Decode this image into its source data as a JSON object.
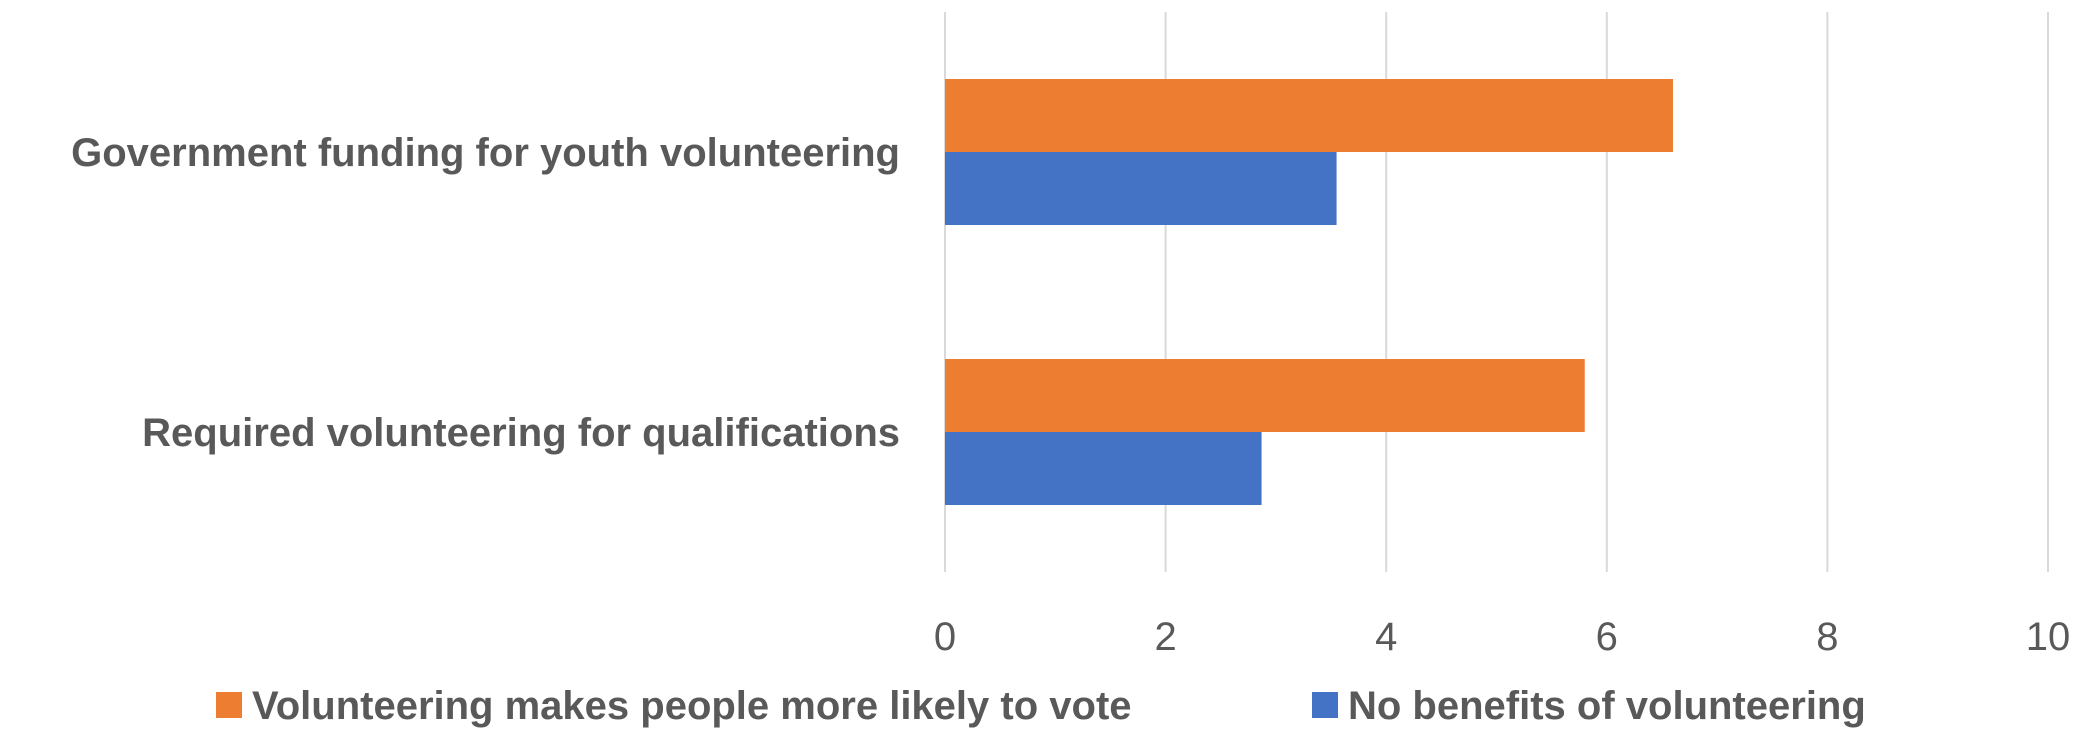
{
  "chart_data": {
    "type": "bar",
    "orientation": "horizontal",
    "categories": [
      "Government funding for youth volunteering",
      "Required volunteering for qualifications"
    ],
    "series": [
      {
        "name": "Volunteering makes people more likely to vote",
        "color": "#ED7D31",
        "values": [
          6.6,
          5.8
        ]
      },
      {
        "name": "No benefits of volunteering",
        "color": "#4472C4",
        "values": [
          3.55,
          2.87
        ]
      }
    ],
    "xlim": [
      0,
      10
    ],
    "xticks": [
      "0",
      "2",
      "4",
      "6",
      "8",
      "10"
    ],
    "grid": true,
    "legend": "bottom",
    "title": "",
    "xlabel": "",
    "ylabel": ""
  }
}
